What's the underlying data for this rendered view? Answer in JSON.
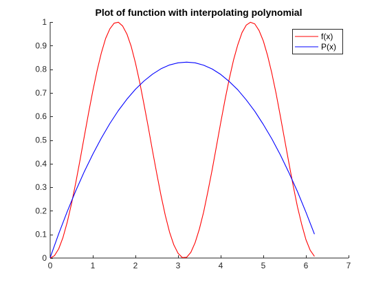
{
  "chart_data": {
    "type": "line",
    "title": "Plot of function with interpolating polynomial",
    "xlabel": "",
    "ylabel": "",
    "xlim": [
      0,
      7
    ],
    "ylim": [
      0,
      1
    ],
    "xticks": [
      0,
      1,
      2,
      3,
      4,
      5,
      6,
      7
    ],
    "yticks": [
      0,
      0.1,
      0.2,
      0.3,
      0.4,
      0.5,
      0.6,
      0.7,
      0.8,
      0.9,
      1
    ],
    "xtick_labels": [
      "0",
      "1",
      "2",
      "3",
      "4",
      "5",
      "6",
      "7"
    ],
    "ytick_labels": [
      "0",
      "0.1",
      "0.2",
      "0.3",
      "0.4",
      "0.5",
      "0.6",
      "0.7",
      "0.8",
      "0.9",
      "1"
    ],
    "grid": false,
    "legend_position": "top-right",
    "series": [
      {
        "name": "f(x)",
        "color": "#ff0000",
        "x": [
          0,
          0.1,
          0.2,
          0.3,
          0.4,
          0.5,
          0.6,
          0.7,
          0.8,
          0.9,
          1.0,
          1.1,
          1.2,
          1.3,
          1.4,
          1.5,
          1.6,
          1.7,
          1.8,
          1.9,
          2.0,
          2.1,
          2.2,
          2.3,
          2.4,
          2.5,
          2.6,
          2.7,
          2.8,
          2.9,
          3.0,
          3.1,
          3.2,
          3.3,
          3.4,
          3.5,
          3.6,
          3.7,
          3.8,
          3.9,
          4.0,
          4.1,
          4.2,
          4.3,
          4.4,
          4.5,
          4.6,
          4.7,
          4.8,
          4.9,
          5.0,
          5.1,
          5.2,
          5.3,
          5.4,
          5.5,
          5.6,
          5.7,
          5.8,
          5.9,
          6.0,
          6.1,
          6.2
        ],
        "y": [
          0,
          0.01,
          0.039,
          0.087,
          0.152,
          0.23,
          0.319,
          0.415,
          0.515,
          0.614,
          0.708,
          0.794,
          0.869,
          0.93,
          0.971,
          0.995,
          0.999,
          0.983,
          0.949,
          0.897,
          0.827,
          0.745,
          0.652,
          0.556,
          0.455,
          0.358,
          0.265,
          0.181,
          0.11,
          0.056,
          0.02,
          0.002,
          0.003,
          0.024,
          0.065,
          0.123,
          0.195,
          0.282,
          0.374,
          0.473,
          0.573,
          0.669,
          0.758,
          0.838,
          0.903,
          0.955,
          0.987,
          0.999,
          0.992,
          0.964,
          0.92,
          0.858,
          0.783,
          0.697,
          0.601,
          0.502,
          0.403,
          0.307,
          0.218,
          0.143,
          0.078,
          0.033,
          0.007
        ]
      },
      {
        "name": "P(x)",
        "color": "#0000ff",
        "x": [
          0,
          0.2,
          0.4,
          0.6,
          0.8,
          1.0,
          1.2,
          1.4,
          1.6,
          1.8,
          2.0,
          2.2,
          2.4,
          2.6,
          2.8,
          3.0,
          3.2,
          3.4,
          3.6,
          3.8,
          4.0,
          4.2,
          4.4,
          4.6,
          4.8,
          5.0,
          5.2,
          5.4,
          5.6,
          5.8,
          6.0,
          6.2
        ],
        "y": [
          0.002,
          0.103,
          0.197,
          0.285,
          0.366,
          0.44,
          0.508,
          0.57,
          0.625,
          0.673,
          0.715,
          0.75,
          0.779,
          0.802,
          0.818,
          0.827,
          0.83,
          0.827,
          0.817,
          0.801,
          0.778,
          0.748,
          0.713,
          0.67,
          0.622,
          0.566,
          0.505,
          0.437,
          0.362,
          0.282,
          0.194,
          0.101
        ]
      }
    ]
  }
}
